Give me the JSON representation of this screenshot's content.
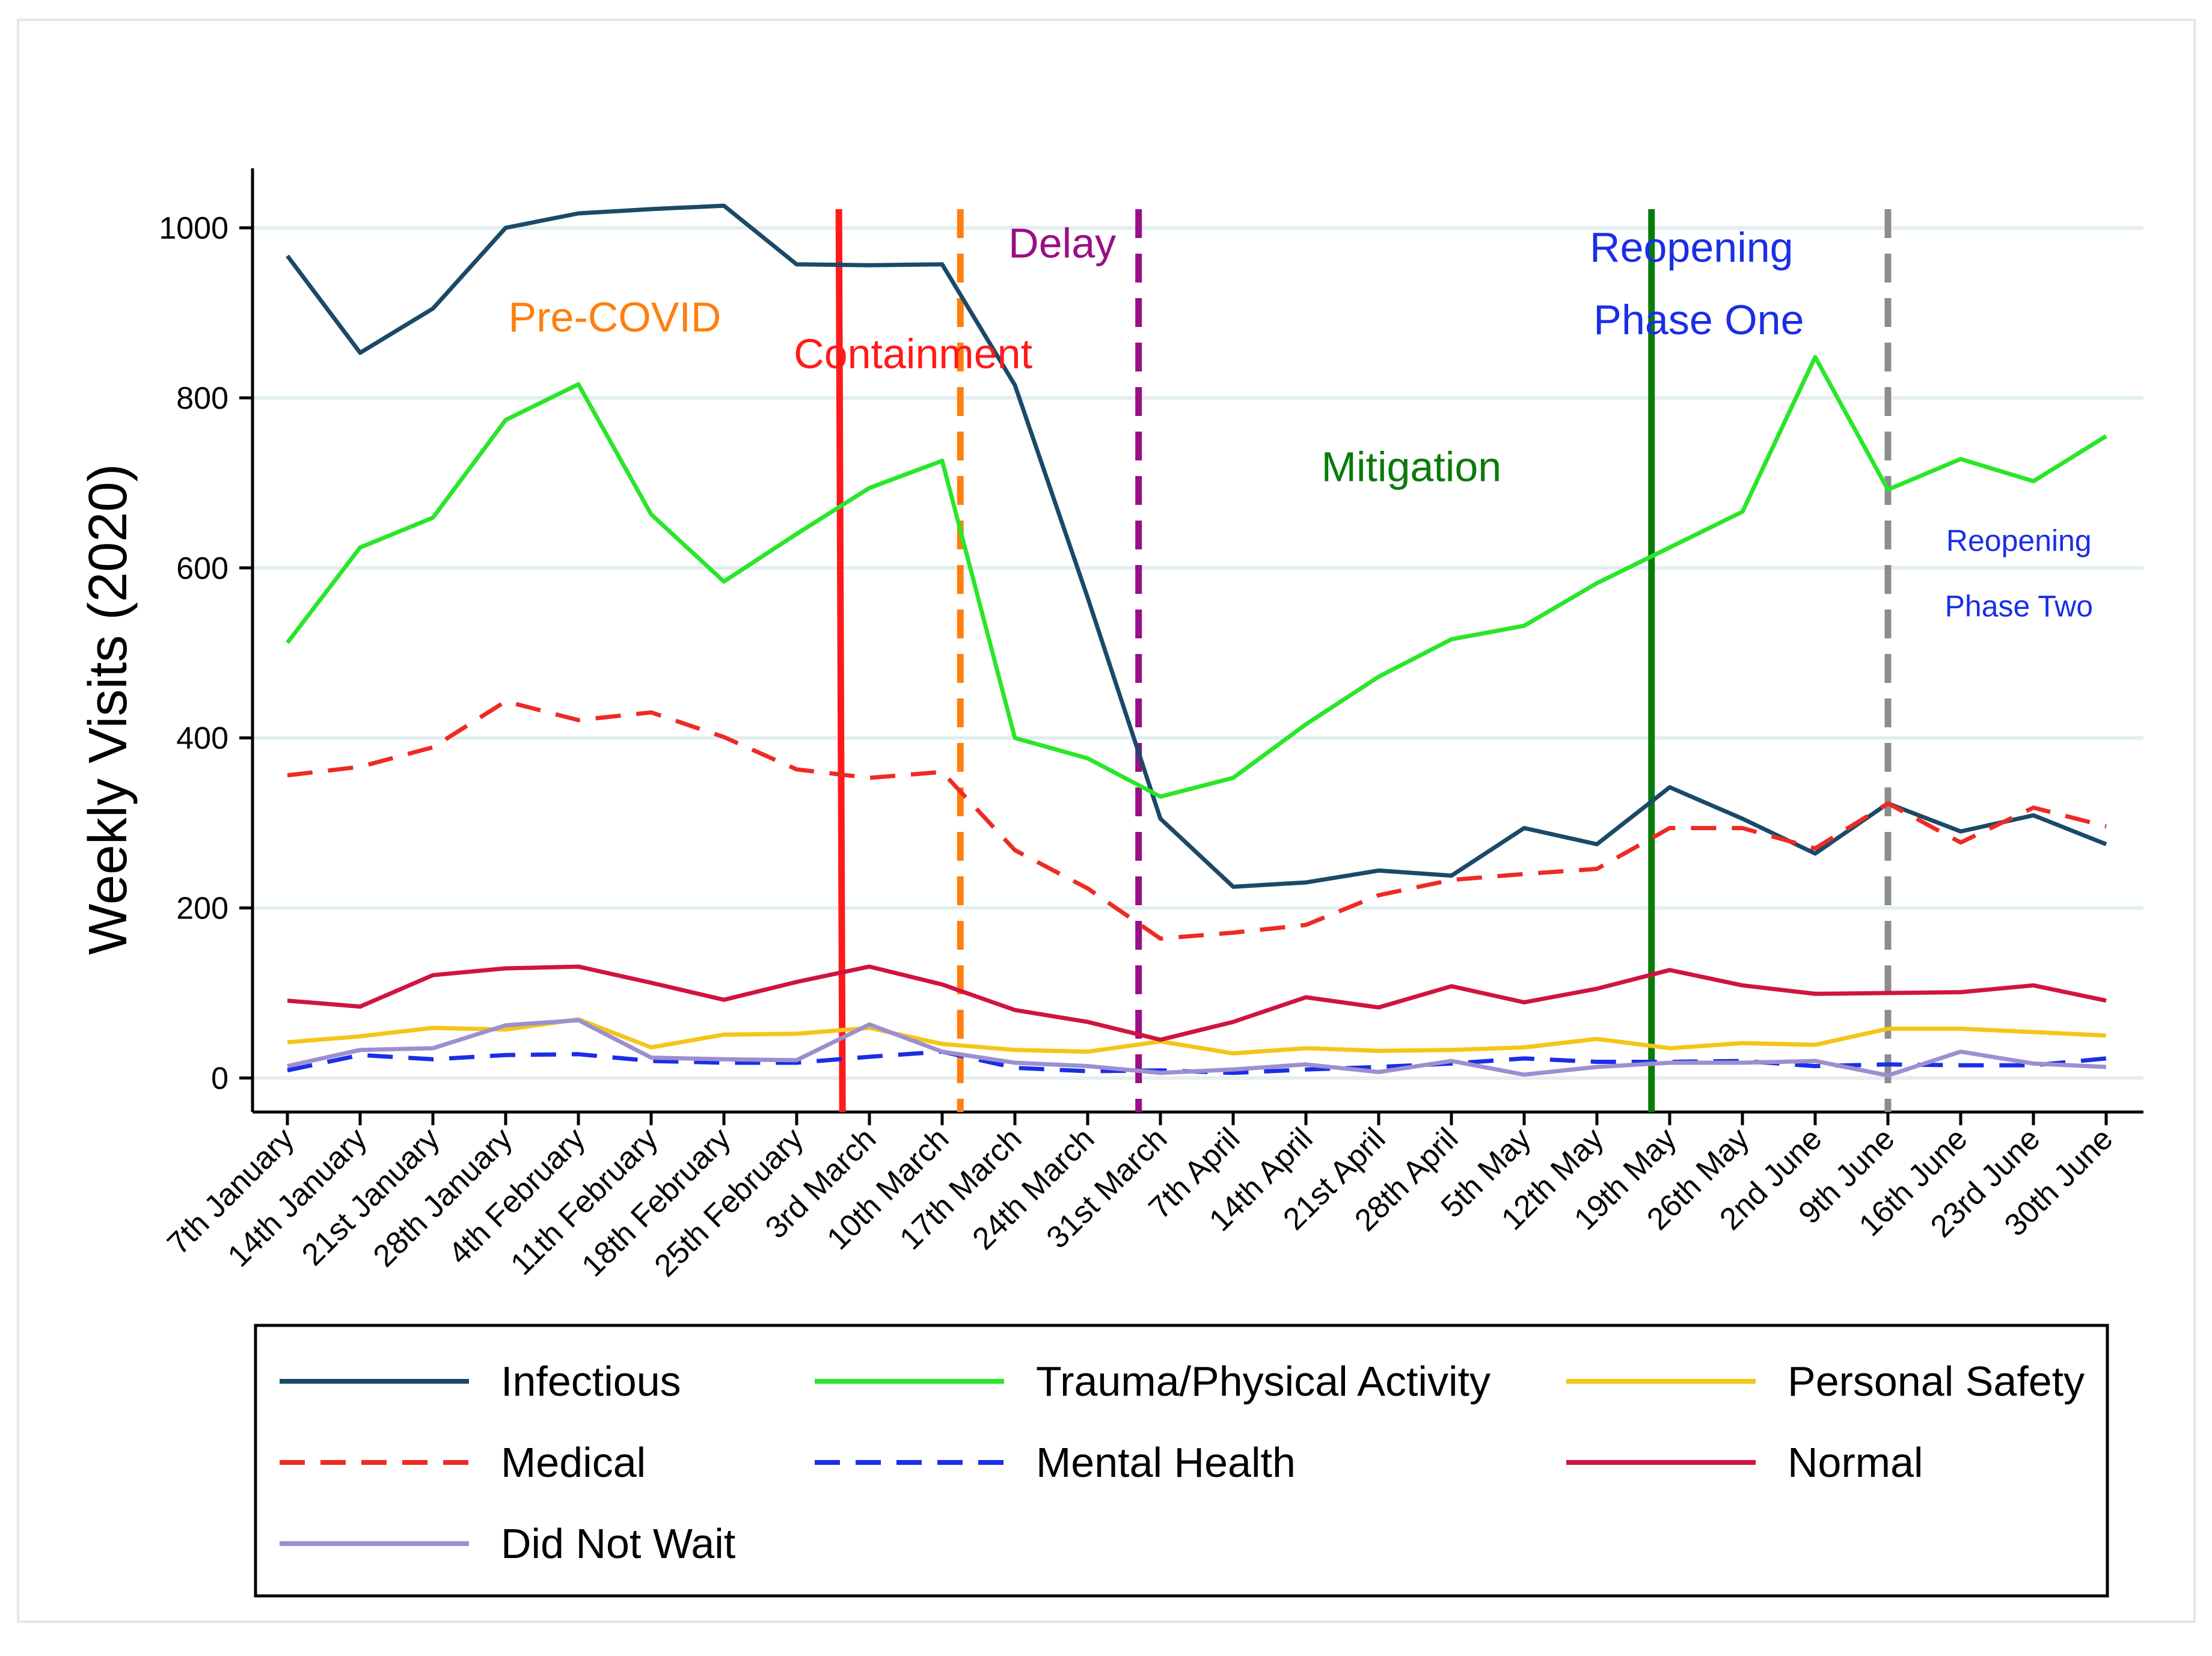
{
  "chart_data": {
    "type": "line",
    "ylabel": "Weekly Visits (2020)",
    "xlabel": "",
    "ylim": [
      -40,
      1070
    ],
    "yticks": [
      0,
      200,
      400,
      600,
      800,
      1000
    ],
    "grid": true,
    "legend_position": "bottom",
    "categories": [
      "7th January",
      "14th January",
      "21st January",
      "28th January",
      "4th February",
      "11th February",
      "18th February",
      "25th February",
      "3rd March",
      "10th March",
      "17th March",
      "24th March",
      "31st March",
      "7th April",
      "14th April",
      "21st April",
      "28th April",
      "5th May",
      "12th May",
      "19th May",
      "26th May",
      "2nd June",
      "9th June",
      "16th June",
      "23rd June",
      "30th June"
    ],
    "series": [
      {
        "name": "Infectious",
        "color": "#1b4968",
        "dash": "solid",
        "values": [
          967,
          853,
          905,
          1000,
          1017,
          1022,
          1026,
          957,
          956,
          957,
          815,
          565,
          305,
          225,
          230,
          244,
          238,
          294,
          275,
          342,
          305,
          264,
          323,
          290,
          309,
          275
        ]
      },
      {
        "name": "Trauma/Physical Activity",
        "color": "#29e629",
        "dash": "solid",
        "values": [
          512,
          624,
          659,
          774,
          816,
          663,
          584,
          640,
          694,
          726,
          400,
          376,
          331,
          353,
          416,
          472,
          516,
          532,
          582,
          624,
          666,
          848,
          692,
          728,
          702,
          755
        ]
      },
      {
        "name": "Personal Safety",
        "color": "#f5c518",
        "dash": "solid",
        "values": [
          42,
          49,
          59,
          57,
          69,
          36,
          51,
          52,
          59,
          40,
          33,
          31,
          43,
          29,
          35,
          32,
          33,
          36,
          46,
          35,
          41,
          39,
          58,
          58,
          54,
          50
        ]
      },
      {
        "name": "Medical",
        "color": "#ee2a24",
        "dash": "dash",
        "values": [
          356,
          366,
          389,
          443,
          421,
          430,
          401,
          363,
          353,
          360,
          268,
          223,
          164,
          171,
          180,
          215,
          233,
          240,
          246,
          294,
          294,
          270,
          323,
          277,
          318,
          296
        ]
      },
      {
        "name": "Mental Health",
        "color": "#1a2ee6",
        "dash": "dash",
        "values": [
          9,
          27,
          22,
          27,
          28,
          20,
          18,
          18,
          25,
          31,
          12,
          8,
          9,
          6,
          10,
          13,
          17,
          23,
          19,
          19,
          20,
          14,
          16,
          15,
          15,
          23
        ]
      },
      {
        "name": "Normal",
        "color": "#d0143f",
        "dash": "solid",
        "values": [
          91,
          84,
          121,
          129,
          131,
          112,
          92,
          113,
          131,
          110,
          80,
          66,
          45,
          66,
          95,
          83,
          108,
          89,
          105,
          127,
          109,
          99,
          100,
          101,
          109,
          91
        ]
      },
      {
        "name": "Did Not Wait",
        "color": "#9c8fd0",
        "dash": "solid",
        "values": [
          14,
          33,
          35,
          62,
          68,
          24,
          22,
          21,
          63,
          31,
          18,
          14,
          6,
          10,
          16,
          7,
          20,
          4,
          13,
          18,
          18,
          20,
          3,
          31,
          17,
          13
        ]
      }
    ],
    "phase_lines": [
      {
        "label": "Containment",
        "color": "#ff1a1a",
        "style": "solid",
        "x_top": 7.58,
        "x_bottom": 7.63
      },
      {
        "label": "Pre-COVID",
        "color": "#ff7f0e",
        "style": "dash",
        "x_top": 9.25,
        "x_bottom": 9.25
      },
      {
        "label": "Delay",
        "color": "#9a0e86",
        "style": "dash",
        "x_top": 11.7,
        "x_bottom": 11.7
      },
      {
        "label": "Mitigation",
        "color": "#0a7a0a",
        "style": "solid",
        "x_top": 18.75,
        "x_bottom": 18.75
      },
      {
        "label": "Reopening Phase Two",
        "color": "#8c8c8c",
        "style": "dash",
        "x_top": 22.0,
        "x_bottom": 22.0
      }
    ],
    "annotations": [
      {
        "key": "precovid",
        "text": "Pre-COVID",
        "color": "#ff7f0e",
        "x": 4.5,
        "y": 878,
        "size": "large"
      },
      {
        "key": "containment",
        "text": "Containment",
        "color": "#ff1a1a",
        "x": 8.6,
        "y": 835,
        "size": "large"
      },
      {
        "key": "delay",
        "text": "Delay",
        "color": "#9a0e86",
        "x": 10.65,
        "y": 965,
        "size": "large"
      },
      {
        "key": "mitigation",
        "text": "Mitigation",
        "color": "#0a7a0a",
        "x": 15.45,
        "y": 702,
        "size": "large"
      },
      {
        "key": "reopen1_a",
        "text": "Reopening",
        "color": "#1a2ee6",
        "x": 19.3,
        "y": 960,
        "size": "large"
      },
      {
        "key": "reopen1_b",
        "text": "Phase One",
        "color": "#1a2ee6",
        "x": 19.4,
        "y": 875,
        "size": "large"
      },
      {
        "key": "reopen2_a",
        "text": "Reopening",
        "color": "#1a2ee6",
        "x": 23.8,
        "y": 620,
        "size": "small"
      },
      {
        "key": "reopen2_b",
        "text": "Phase Two",
        "color": "#1a2ee6",
        "x": 23.8,
        "y": 543,
        "size": "small"
      }
    ]
  }
}
